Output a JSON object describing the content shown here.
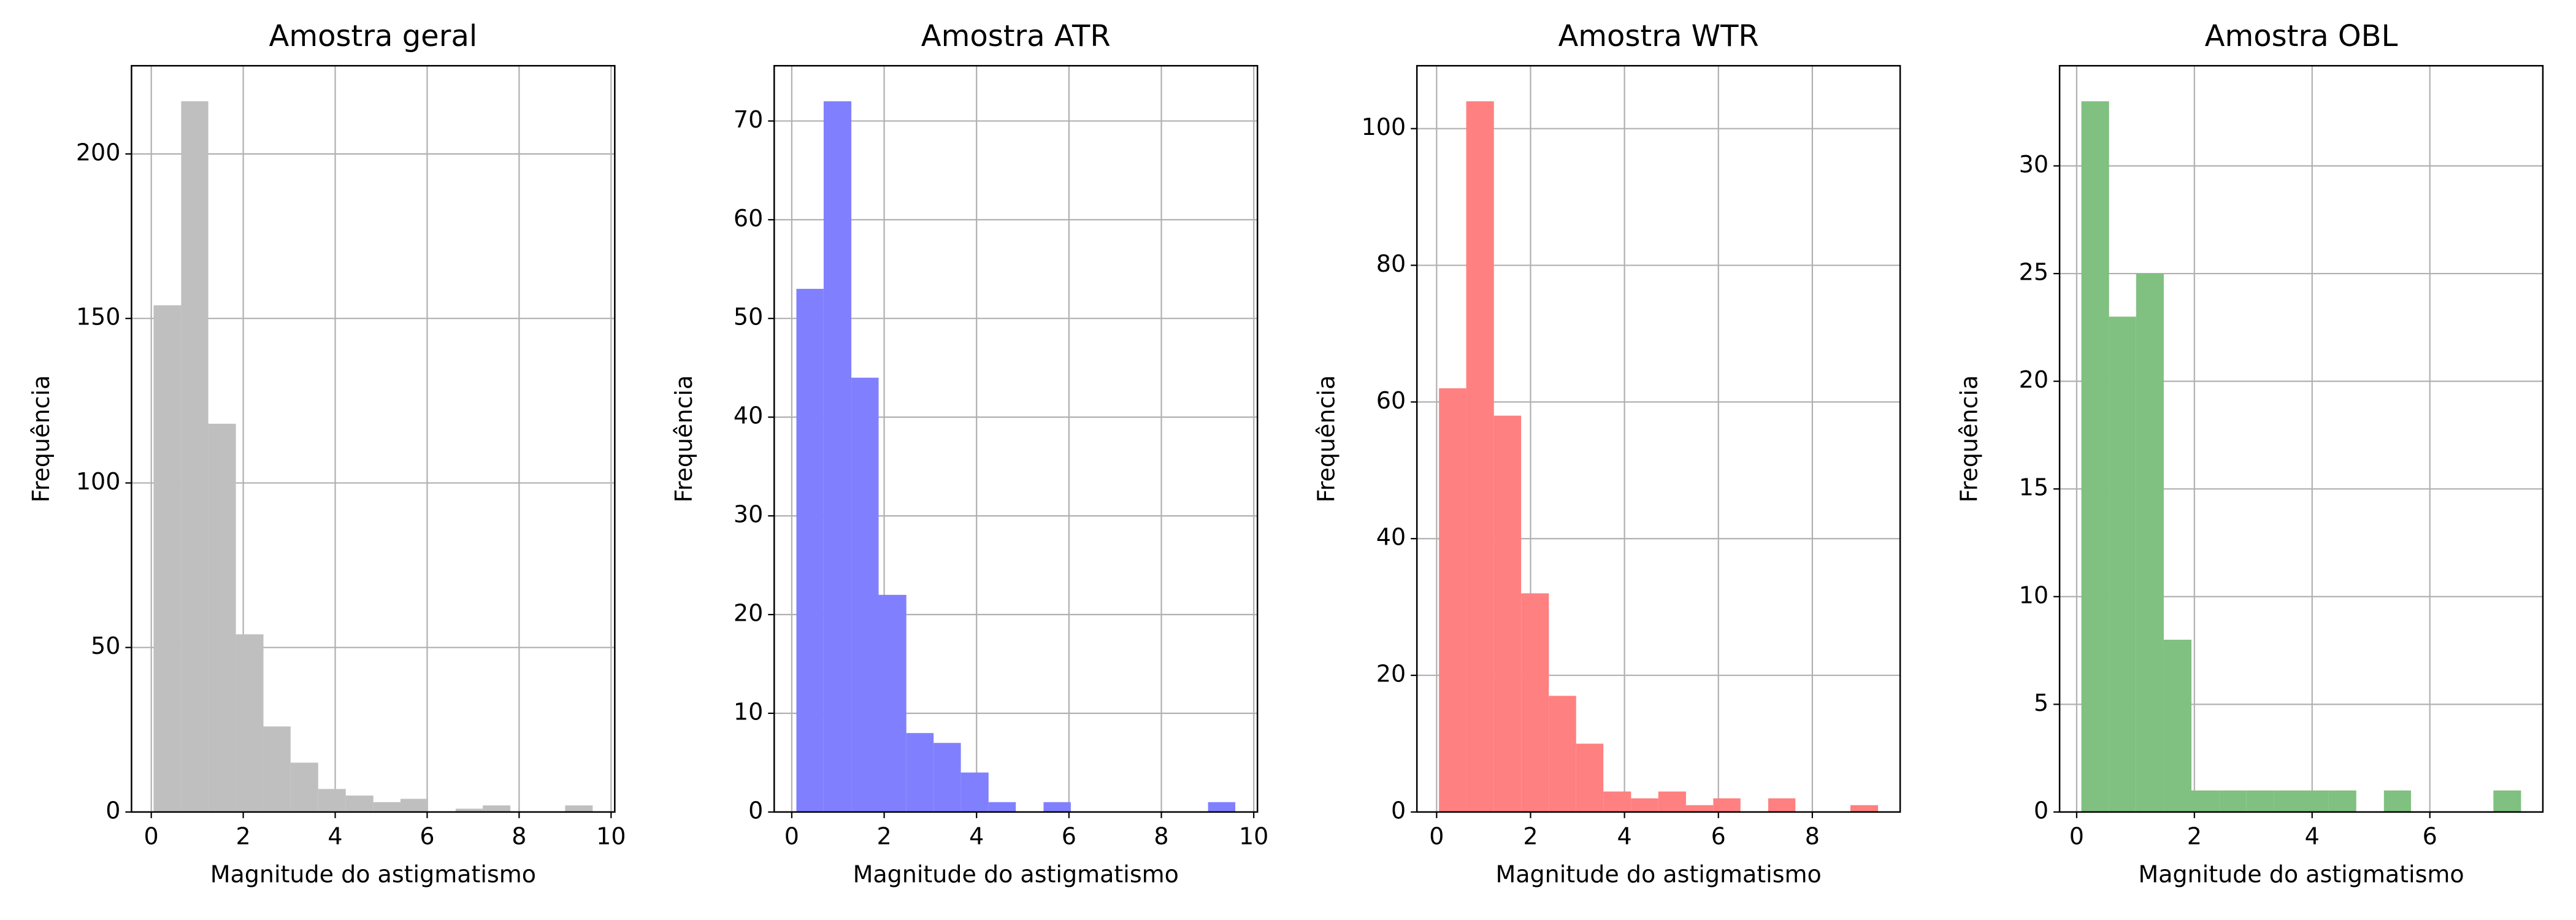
{
  "chart_data": [
    {
      "type": "histogram",
      "title": "Amostra geral",
      "xlabel": "Magnitude do astigmatismo",
      "ylabel": "Frequência",
      "color": "#bfbfbf",
      "grid": true,
      "bins": [
        0.05,
        0.65,
        1.24,
        1.84,
        2.44,
        3.03,
        3.63,
        4.23,
        4.83,
        5.42,
        6.02,
        6.62,
        7.21,
        7.81,
        8.41,
        9.0,
        9.6
      ],
      "values": [
        154,
        216,
        118,
        54,
        26,
        15,
        7,
        5,
        3,
        4,
        0,
        1,
        2,
        0,
        0,
        2
      ],
      "xlim": [
        -0.43,
        10.08
      ],
      "xticks": [
        0,
        2,
        4,
        6,
        8,
        10
      ],
      "ylim": [
        0,
        226.8
      ],
      "yticks": [
        0,
        50,
        100,
        150,
        200
      ]
    },
    {
      "type": "histogram",
      "title": "Amostra ATR",
      "xlabel": "Magnitude do astigmatismo",
      "ylabel": "Frequência",
      "color": "#8080ff",
      "grid": true,
      "bins": [
        0.1,
        0.69,
        1.29,
        1.88,
        2.48,
        3.07,
        3.66,
        4.26,
        4.85,
        5.45,
        6.04,
        6.63,
        7.23,
        7.82,
        8.42,
        9.01,
        9.6
      ],
      "values": [
        53,
        72,
        44,
        22,
        8,
        7,
        4,
        1,
        0,
        1,
        0,
        0,
        0,
        0,
        0,
        1
      ],
      "xlim": [
        -0.38,
        10.08
      ],
      "xticks": [
        0,
        2,
        4,
        6,
        8,
        10
      ],
      "ylim": [
        0,
        75.6
      ],
      "yticks": [
        0,
        10,
        20,
        30,
        40,
        50,
        60,
        70
      ]
    },
    {
      "type": "histogram",
      "title": "Amostra WTR",
      "xlabel": "Magnitude do astigmatismo",
      "ylabel": "Frequência",
      "color": "#ff8080",
      "grid": true,
      "bins": [
        0.05,
        0.63,
        1.22,
        1.8,
        2.39,
        2.97,
        3.55,
        4.14,
        4.72,
        5.31,
        5.89,
        6.47,
        7.06,
        7.64,
        8.23,
        8.81,
        9.4
      ],
      "values": [
        62,
        104,
        58,
        32,
        17,
        10,
        3,
        2,
        3,
        1,
        2,
        0,
        2,
        0,
        0,
        1
      ],
      "xlim": [
        -0.42,
        9.87
      ],
      "xticks": [
        0,
        2,
        4,
        6,
        8
      ],
      "ylim": [
        0,
        109.2
      ],
      "yticks": [
        0,
        20,
        40,
        60,
        80,
        100
      ]
    },
    {
      "type": "histogram",
      "title": "Amostra OBL",
      "xlabel": "Magnitude do astigmatismo",
      "ylabel": "Frequência",
      "color": "#80c080",
      "grid": true,
      "bins": [
        0.08,
        0.55,
        1.01,
        1.48,
        1.95,
        2.42,
        2.88,
        3.35,
        3.82,
        4.28,
        4.75,
        5.22,
        5.68,
        6.15,
        6.62,
        7.08,
        7.55
      ],
      "values": [
        33,
        23,
        25,
        8,
        1,
        1,
        1,
        1,
        1,
        1,
        0,
        1,
        0,
        0,
        0,
        1
      ],
      "xlim": [
        -0.29,
        7.92
      ],
      "xticks": [
        0,
        2,
        4,
        6
      ],
      "ylim": [
        0,
        34.65
      ],
      "yticks": [
        0,
        5,
        10,
        15,
        20,
        25,
        30
      ]
    }
  ]
}
